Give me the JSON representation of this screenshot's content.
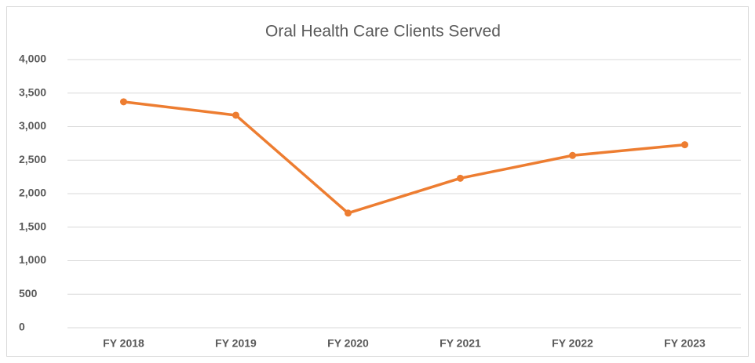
{
  "chart_data": {
    "type": "line",
    "title": "Oral Health Care Clients Served",
    "categories": [
      "FY 2018",
      "FY 2019",
      "FY 2020",
      "FY 2021",
      "FY 2022",
      "FY 2023"
    ],
    "series": [
      {
        "name": "Oral Health Care Clients Served",
        "color": "#ed7d31",
        "values": [
          3370,
          3170,
          1710,
          2230,
          2570,
          2730
        ]
      }
    ],
    "ylim": [
      0,
      4000
    ],
    "yticks": [
      0,
      500,
      {
        "value": 1000,
        "label": "1,000"
      },
      {
        "value": 1500,
        "label": "1,500"
      },
      {
        "value": 2000,
        "label": "2,000"
      },
      {
        "value": 2500,
        "label": "2,500"
      },
      {
        "value": 3000,
        "label": "3,000"
      },
      {
        "value": 3500,
        "label": "3,500"
      },
      {
        "value": 4000,
        "label": "4,000"
      }
    ],
    "grid": true
  }
}
